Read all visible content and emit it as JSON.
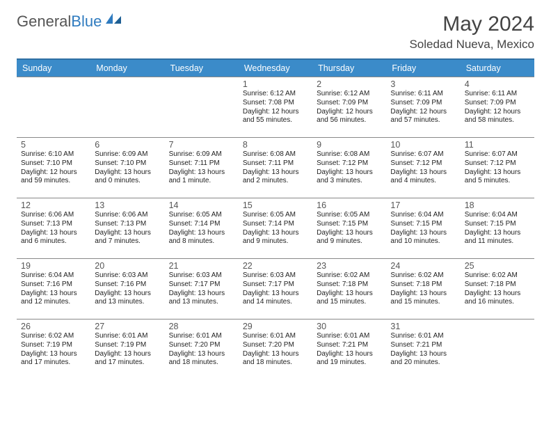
{
  "logo": {
    "textGray": "General",
    "textBlue": "Blue"
  },
  "header": {
    "month": "May 2024",
    "location": "Soledad Nueva, Mexico"
  },
  "dayNames": [
    "Sunday",
    "Monday",
    "Tuesday",
    "Wednesday",
    "Thursday",
    "Friday",
    "Saturday"
  ],
  "colors": {
    "headerBg": "#3b8bc9",
    "headerBorderTop": "#2f6fa3",
    "rowBorder": "#888888",
    "logoBlue": "#2f7bbf",
    "logoGray": "#555555",
    "text": "#222222"
  },
  "weeks": [
    [
      null,
      null,
      null,
      {
        "n": "1",
        "sr": "Sunrise: 6:12 AM",
        "ss": "Sunset: 7:08 PM",
        "d1": "Daylight: 12 hours",
        "d2": "and 55 minutes."
      },
      {
        "n": "2",
        "sr": "Sunrise: 6:12 AM",
        "ss": "Sunset: 7:09 PM",
        "d1": "Daylight: 12 hours",
        "d2": "and 56 minutes."
      },
      {
        "n": "3",
        "sr": "Sunrise: 6:11 AM",
        "ss": "Sunset: 7:09 PM",
        "d1": "Daylight: 12 hours",
        "d2": "and 57 minutes."
      },
      {
        "n": "4",
        "sr": "Sunrise: 6:11 AM",
        "ss": "Sunset: 7:09 PM",
        "d1": "Daylight: 12 hours",
        "d2": "and 58 minutes."
      }
    ],
    [
      {
        "n": "5",
        "sr": "Sunrise: 6:10 AM",
        "ss": "Sunset: 7:10 PM",
        "d1": "Daylight: 12 hours",
        "d2": "and 59 minutes."
      },
      {
        "n": "6",
        "sr": "Sunrise: 6:09 AM",
        "ss": "Sunset: 7:10 PM",
        "d1": "Daylight: 13 hours",
        "d2": "and 0 minutes."
      },
      {
        "n": "7",
        "sr": "Sunrise: 6:09 AM",
        "ss": "Sunset: 7:11 PM",
        "d1": "Daylight: 13 hours",
        "d2": "and 1 minute."
      },
      {
        "n": "8",
        "sr": "Sunrise: 6:08 AM",
        "ss": "Sunset: 7:11 PM",
        "d1": "Daylight: 13 hours",
        "d2": "and 2 minutes."
      },
      {
        "n": "9",
        "sr": "Sunrise: 6:08 AM",
        "ss": "Sunset: 7:12 PM",
        "d1": "Daylight: 13 hours",
        "d2": "and 3 minutes."
      },
      {
        "n": "10",
        "sr": "Sunrise: 6:07 AM",
        "ss": "Sunset: 7:12 PM",
        "d1": "Daylight: 13 hours",
        "d2": "and 4 minutes."
      },
      {
        "n": "11",
        "sr": "Sunrise: 6:07 AM",
        "ss": "Sunset: 7:12 PM",
        "d1": "Daylight: 13 hours",
        "d2": "and 5 minutes."
      }
    ],
    [
      {
        "n": "12",
        "sr": "Sunrise: 6:06 AM",
        "ss": "Sunset: 7:13 PM",
        "d1": "Daylight: 13 hours",
        "d2": "and 6 minutes."
      },
      {
        "n": "13",
        "sr": "Sunrise: 6:06 AM",
        "ss": "Sunset: 7:13 PM",
        "d1": "Daylight: 13 hours",
        "d2": "and 7 minutes."
      },
      {
        "n": "14",
        "sr": "Sunrise: 6:05 AM",
        "ss": "Sunset: 7:14 PM",
        "d1": "Daylight: 13 hours",
        "d2": "and 8 minutes."
      },
      {
        "n": "15",
        "sr": "Sunrise: 6:05 AM",
        "ss": "Sunset: 7:14 PM",
        "d1": "Daylight: 13 hours",
        "d2": "and 9 minutes."
      },
      {
        "n": "16",
        "sr": "Sunrise: 6:05 AM",
        "ss": "Sunset: 7:15 PM",
        "d1": "Daylight: 13 hours",
        "d2": "and 9 minutes."
      },
      {
        "n": "17",
        "sr": "Sunrise: 6:04 AM",
        "ss": "Sunset: 7:15 PM",
        "d1": "Daylight: 13 hours",
        "d2": "and 10 minutes."
      },
      {
        "n": "18",
        "sr": "Sunrise: 6:04 AM",
        "ss": "Sunset: 7:15 PM",
        "d1": "Daylight: 13 hours",
        "d2": "and 11 minutes."
      }
    ],
    [
      {
        "n": "19",
        "sr": "Sunrise: 6:04 AM",
        "ss": "Sunset: 7:16 PM",
        "d1": "Daylight: 13 hours",
        "d2": "and 12 minutes."
      },
      {
        "n": "20",
        "sr": "Sunrise: 6:03 AM",
        "ss": "Sunset: 7:16 PM",
        "d1": "Daylight: 13 hours",
        "d2": "and 13 minutes."
      },
      {
        "n": "21",
        "sr": "Sunrise: 6:03 AM",
        "ss": "Sunset: 7:17 PM",
        "d1": "Daylight: 13 hours",
        "d2": "and 13 minutes."
      },
      {
        "n": "22",
        "sr": "Sunrise: 6:03 AM",
        "ss": "Sunset: 7:17 PM",
        "d1": "Daylight: 13 hours",
        "d2": "and 14 minutes."
      },
      {
        "n": "23",
        "sr": "Sunrise: 6:02 AM",
        "ss": "Sunset: 7:18 PM",
        "d1": "Daylight: 13 hours",
        "d2": "and 15 minutes."
      },
      {
        "n": "24",
        "sr": "Sunrise: 6:02 AM",
        "ss": "Sunset: 7:18 PM",
        "d1": "Daylight: 13 hours",
        "d2": "and 15 minutes."
      },
      {
        "n": "25",
        "sr": "Sunrise: 6:02 AM",
        "ss": "Sunset: 7:18 PM",
        "d1": "Daylight: 13 hours",
        "d2": "and 16 minutes."
      }
    ],
    [
      {
        "n": "26",
        "sr": "Sunrise: 6:02 AM",
        "ss": "Sunset: 7:19 PM",
        "d1": "Daylight: 13 hours",
        "d2": "and 17 minutes."
      },
      {
        "n": "27",
        "sr": "Sunrise: 6:01 AM",
        "ss": "Sunset: 7:19 PM",
        "d1": "Daylight: 13 hours",
        "d2": "and 17 minutes."
      },
      {
        "n": "28",
        "sr": "Sunrise: 6:01 AM",
        "ss": "Sunset: 7:20 PM",
        "d1": "Daylight: 13 hours",
        "d2": "and 18 minutes."
      },
      {
        "n": "29",
        "sr": "Sunrise: 6:01 AM",
        "ss": "Sunset: 7:20 PM",
        "d1": "Daylight: 13 hours",
        "d2": "and 18 minutes."
      },
      {
        "n": "30",
        "sr": "Sunrise: 6:01 AM",
        "ss": "Sunset: 7:21 PM",
        "d1": "Daylight: 13 hours",
        "d2": "and 19 minutes."
      },
      {
        "n": "31",
        "sr": "Sunrise: 6:01 AM",
        "ss": "Sunset: 7:21 PM",
        "d1": "Daylight: 13 hours",
        "d2": "and 20 minutes."
      },
      null
    ]
  ]
}
